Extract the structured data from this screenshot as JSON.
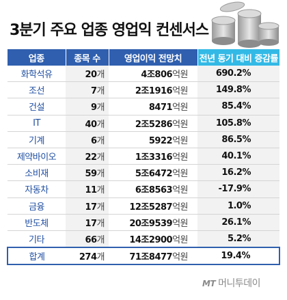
{
  "title": "3분기 주요 업종 영업익 컨센서스",
  "logo": {
    "prefix": "MT",
    "name": "머니투데이"
  },
  "chart_data": {
    "type": "table",
    "columns": [
      "업종",
      "종목 수",
      "영업이익 전망치",
      "전년 동기 대비 증감률"
    ],
    "rows": [
      {
        "sector": "화학석유",
        "count": "20",
        "count_unit": "개",
        "profit": "4조806",
        "profit_unit": "억원",
        "growth": "690.2%"
      },
      {
        "sector": "조선",
        "count": "7",
        "count_unit": "개",
        "profit": "2조1916",
        "profit_unit": "억원",
        "growth": "149.8%"
      },
      {
        "sector": "건설",
        "count": "9",
        "count_unit": "개",
        "profit": "8471",
        "profit_unit": "억원",
        "growth": "85.4%"
      },
      {
        "sector": "IT",
        "count": "40",
        "count_unit": "개",
        "profit": "2조5286",
        "profit_unit": "억원",
        "growth": "105.8%"
      },
      {
        "sector": "기계",
        "count": "6",
        "count_unit": "개",
        "profit": "5922",
        "profit_unit": "억원",
        "growth": "86.5%"
      },
      {
        "sector": "제약바이오",
        "count": "22",
        "count_unit": "개",
        "profit": "1조3316",
        "profit_unit": "억원",
        "growth": "40.1%"
      },
      {
        "sector": "소비재",
        "count": "59",
        "count_unit": "개",
        "profit": "5조6472",
        "profit_unit": "억원",
        "growth": "16.2%"
      },
      {
        "sector": "자동차",
        "count": "11",
        "count_unit": "개",
        "profit": "6조8563",
        "profit_unit": "억원",
        "growth": "-17.9%"
      },
      {
        "sector": "금융",
        "count": "17",
        "count_unit": "개",
        "profit": "12조5287",
        "profit_unit": "억원",
        "growth": "1.0%"
      },
      {
        "sector": "반도체",
        "count": "17",
        "count_unit": "개",
        "profit": "20조9539",
        "profit_unit": "억원",
        "growth": "26.1%"
      },
      {
        "sector": "기타",
        "count": "66",
        "count_unit": "개",
        "profit": "14조2900",
        "profit_unit": "억원",
        "growth": "5.2%"
      }
    ],
    "total": {
      "sector": "합계",
      "count": "274",
      "count_unit": "개",
      "profit": "71조8477",
      "profit_unit": "억원",
      "growth": "19.4%"
    }
  }
}
